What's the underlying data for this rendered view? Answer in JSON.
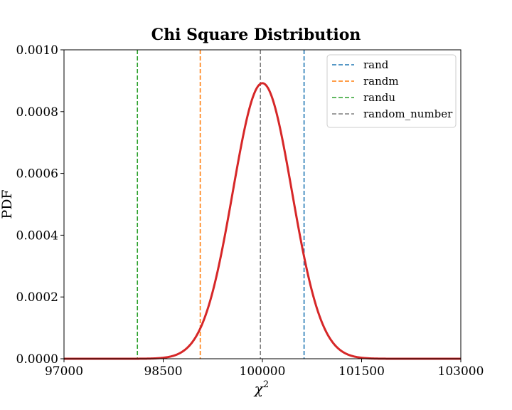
{
  "chart_data": {
    "type": "line",
    "title": "Chi Square Distribution",
    "xlabel": "χ",
    "xlabel_superscript": "2",
    "ylabel": "PDF",
    "xlim": [
      97000,
      103000
    ],
    "ylim": [
      0,
      0.001
    ],
    "x_ticks": [
      97000,
      98500,
      100000,
      101500,
      103000
    ],
    "x_tick_labels": [
      "97000",
      "98500",
      "100000",
      "101500",
      "103000"
    ],
    "y_ticks": [
      0,
      0.0002,
      0.0004,
      0.0006,
      0.0008,
      0.001
    ],
    "y_tick_labels": [
      "0.0000",
      "0.0002",
      "0.0004",
      "0.0006",
      "0.0008",
      "0.0010"
    ],
    "grid": false,
    "legend_position": "top-right",
    "curve": {
      "color": "#d62728",
      "distribution": "chi-square",
      "degrees_of_freedom": 100000
    },
    "vlines": [
      {
        "name": "rand",
        "x": 100630,
        "color": "#1f77b4"
      },
      {
        "name": "randm",
        "x": 99060,
        "color": "#ff7f0e"
      },
      {
        "name": "randu",
        "x": 98110,
        "color": "#2ca02c"
      },
      {
        "name": "random_number",
        "x": 99970,
        "color": "#7f7f7f"
      }
    ]
  }
}
